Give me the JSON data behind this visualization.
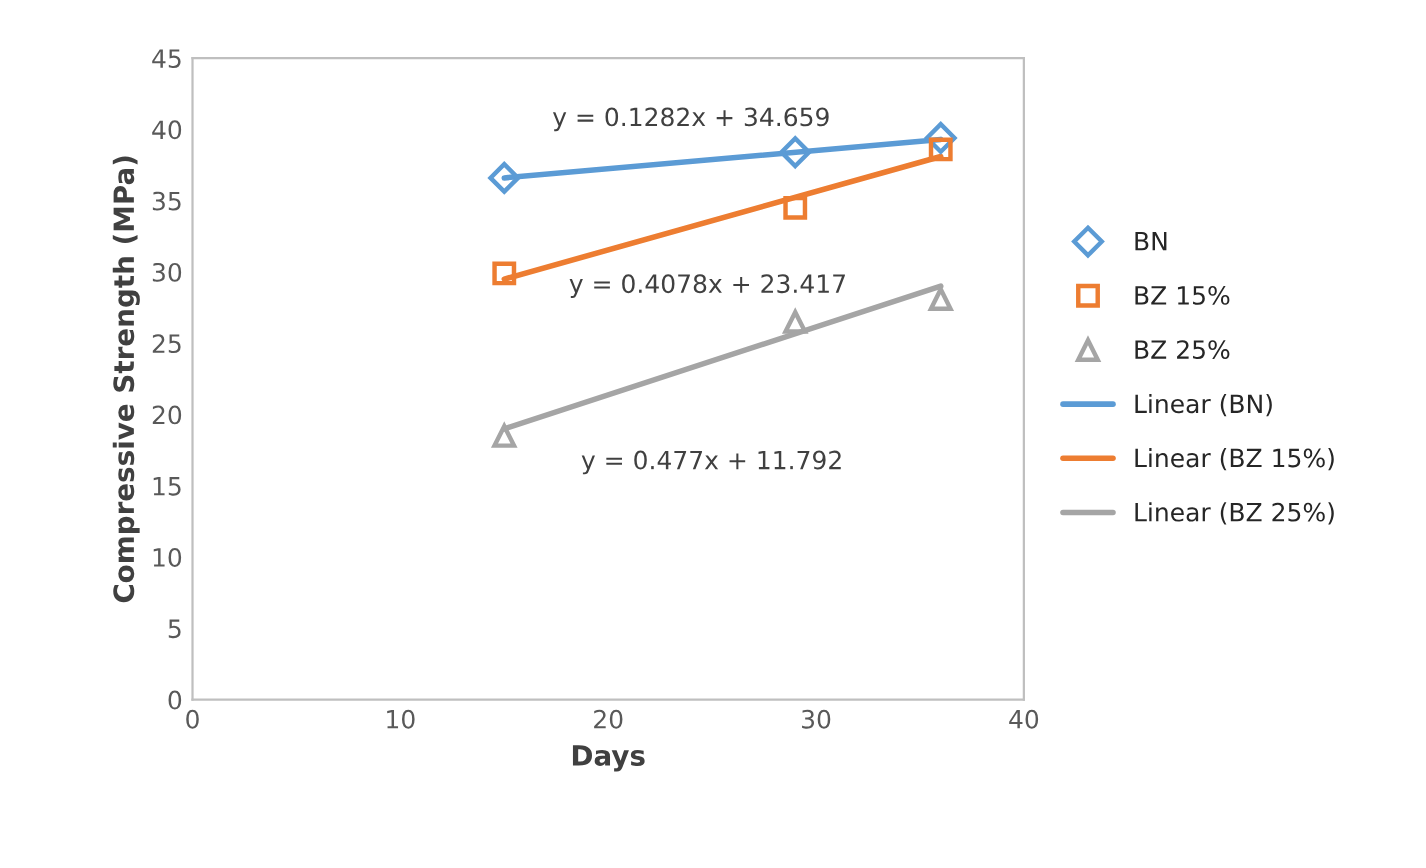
{
  "chart_data": {
    "type": "scatter",
    "xlabel": "Days",
    "ylabel": "Compressive Strength (MPa)",
    "xlim": [
      0,
      40
    ],
    "xticks": [
      0,
      10,
      20,
      30,
      40
    ],
    "ylim": [
      0,
      45
    ],
    "yticks": [
      0,
      5,
      10,
      15,
      20,
      25,
      30,
      35,
      40,
      45
    ],
    "grid": false,
    "legend": "right",
    "series": [
      {
        "name": "BN",
        "marker": "diamond",
        "color": "#5b9bd5",
        "x": [
          15,
          29,
          36
        ],
        "values": [
          36.6,
          38.4,
          39.4
        ]
      },
      {
        "name": "BZ 15%",
        "marker": "square",
        "color": "#ed7d31",
        "x": [
          15,
          29,
          36
        ],
        "values": [
          29.9,
          34.5,
          38.6
        ]
      },
      {
        "name": "BZ 25%",
        "marker": "triangle",
        "color": "#a5a5a5",
        "x": [
          15,
          29,
          36
        ],
        "values": [
          18.5,
          26.5,
          28.1
        ]
      },
      {
        "name": "Linear (BN)",
        "type": "line",
        "marker": "none",
        "color": "#5b9bd5",
        "x": [
          15,
          36
        ],
        "values": [
          36.6,
          39.3
        ]
      },
      {
        "name": "Linear (BZ 15%)",
        "type": "line",
        "marker": "none",
        "color": "#ed7d31",
        "x": [
          15,
          36
        ],
        "values": [
          29.5,
          38.1
        ]
      },
      {
        "name": "Linear (BZ 25%)",
        "type": "line",
        "marker": "none",
        "color": "#a5a5a5",
        "x": [
          15,
          36
        ],
        "values": [
          19.0,
          29.0
        ]
      }
    ],
    "annotations": [
      "y = 0.1282x + 34.659",
      "y = 0.4078x + 23.417",
      "y = 0.477x + 11.792"
    ]
  }
}
